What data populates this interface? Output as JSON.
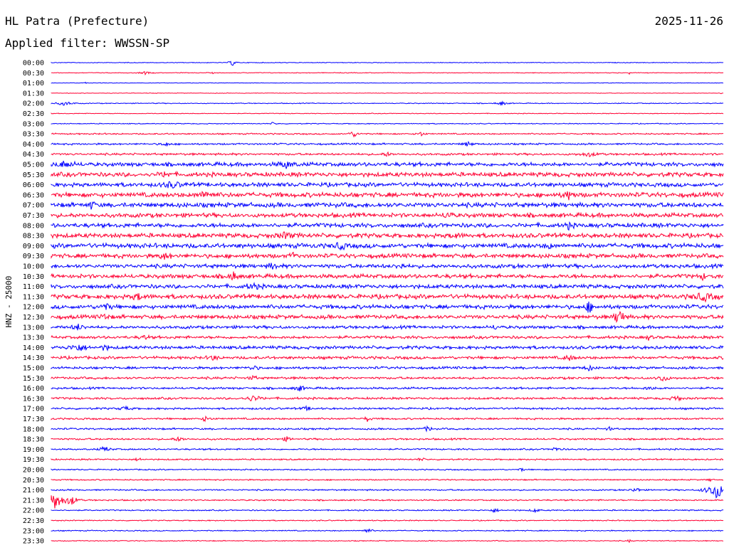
{
  "header": {
    "station": "HL Patra (Prefecture)",
    "date": "2025-11-26",
    "filter": "Applied filter: WWSSN-SP"
  },
  "colors": {
    "even": "#0000ff",
    "odd": "#ff0033"
  },
  "chart_data": {
    "type": "line",
    "title": "HL Patra (Prefecture)",
    "ylabel": "HNZ - 25000",
    "xlabel": "",
    "rows": [
      {
        "time": "00:00",
        "noise": 0.4,
        "events": [
          [
            0.27,
            5,
            3
          ]
        ]
      },
      {
        "time": "00:30",
        "noise": 0.4,
        "events": [
          [
            0.14,
            2,
            6
          ],
          [
            0.24,
            3,
            1
          ],
          [
            0.86,
            2,
            1
          ]
        ]
      },
      {
        "time": "01:00",
        "noise": 0.3,
        "events": [
          [
            0.05,
            2,
            1
          ]
        ]
      },
      {
        "time": "01:30",
        "noise": 0.3,
        "events": [
          [
            0.995,
            3,
            1
          ]
        ]
      },
      {
        "time": "02:00",
        "noise": 0.5,
        "events": [
          [
            0.02,
            3,
            8
          ],
          [
            0.67,
            3,
            5
          ]
        ]
      },
      {
        "time": "02:30",
        "noise": 0.4,
        "events": []
      },
      {
        "time": "03:00",
        "noise": 0.5,
        "events": [
          [
            0.33,
            2,
            3
          ]
        ]
      },
      {
        "time": "03:30",
        "noise": 0.8,
        "events": [
          [
            0.45,
            4,
            5
          ],
          [
            0.55,
            3,
            4
          ]
        ]
      },
      {
        "time": "04:00",
        "noise": 1.0,
        "events": [
          [
            0.17,
            3,
            4
          ],
          [
            0.62,
            3,
            5
          ]
        ]
      },
      {
        "time": "04:30",
        "noise": 1.2,
        "events": [
          [
            0.5,
            3,
            4
          ],
          [
            0.8,
            3,
            8
          ]
        ]
      },
      {
        "time": "05:00",
        "noise": 2.2,
        "events": [
          [
            0.02,
            4,
            10
          ],
          [
            0.35,
            4,
            8
          ]
        ]
      },
      {
        "time": "05:30",
        "noise": 2.4,
        "events": [
          [
            0.17,
            4,
            5
          ]
        ]
      },
      {
        "time": "06:00",
        "noise": 2.3,
        "events": [
          [
            0.18,
            4,
            8
          ]
        ]
      },
      {
        "time": "06:30",
        "noise": 2.6,
        "events": [
          [
            0.23,
            4,
            8
          ],
          [
            0.77,
            5,
            5
          ]
        ]
      },
      {
        "time": "07:00",
        "noise": 2.6,
        "events": [
          [
            0.06,
            5,
            3
          ]
        ]
      },
      {
        "time": "07:30",
        "noise": 2.4,
        "events": [
          [
            0.59,
            5,
            4
          ]
        ]
      },
      {
        "time": "08:00",
        "noise": 2.4,
        "events": [
          [
            0.77,
            4,
            4
          ]
        ]
      },
      {
        "time": "08:30",
        "noise": 2.5,
        "events": [
          [
            0.35,
            4,
            8
          ],
          [
            0.6,
            4,
            5
          ]
        ]
      },
      {
        "time": "09:00",
        "noise": 2.6,
        "events": [
          [
            0.43,
            5,
            5
          ],
          [
            0.74,
            4,
            3
          ]
        ]
      },
      {
        "time": "09:30",
        "noise": 2.4,
        "events": [
          [
            0.17,
            4,
            5
          ],
          [
            0.36,
            5,
            2
          ]
        ]
      },
      {
        "time": "10:00",
        "noise": 2.2,
        "events": [
          [
            0.33,
            5,
            4
          ],
          [
            0.52,
            4,
            4
          ]
        ]
      },
      {
        "time": "10:30",
        "noise": 2.3,
        "events": [
          [
            0.27,
            7,
            4
          ],
          [
            0.97,
            4,
            3
          ]
        ]
      },
      {
        "time": "11:00",
        "noise": 2.2,
        "events": [
          [
            0.3,
            4,
            6
          ]
        ]
      },
      {
        "time": "11:30",
        "noise": 2.5,
        "events": [
          [
            0.13,
            4,
            6
          ],
          [
            0.97,
            5,
            10
          ]
        ]
      },
      {
        "time": "12:00",
        "noise": 2.3,
        "events": [
          [
            0.8,
            8,
            4
          ],
          [
            0.08,
            4,
            6
          ]
        ]
      },
      {
        "time": "12:30",
        "noise": 2.2,
        "events": [
          [
            0.845,
            16,
            4
          ],
          [
            0.08,
            4,
            4
          ]
        ]
      },
      {
        "time": "13:00",
        "noise": 1.7,
        "events": [
          [
            0.04,
            4,
            6
          ],
          [
            0.66,
            3,
            3
          ]
        ]
      },
      {
        "time": "13:30",
        "noise": 1.6,
        "events": [
          [
            0.14,
            3,
            4
          ],
          [
            0.89,
            4,
            3
          ]
        ]
      },
      {
        "time": "14:00",
        "noise": 1.8,
        "events": [
          [
            0.04,
            5,
            8
          ],
          [
            0.08,
            4,
            4
          ]
        ]
      },
      {
        "time": "14:30",
        "noise": 1.6,
        "events": [
          [
            0.24,
            4,
            4
          ],
          [
            0.77,
            4,
            5
          ]
        ]
      },
      {
        "time": "15:00",
        "noise": 1.4,
        "events": [
          [
            0.3,
            4,
            4
          ],
          [
            0.8,
            4,
            4
          ]
        ]
      },
      {
        "time": "15:30",
        "noise": 1.3,
        "events": [
          [
            0.91,
            5,
            5
          ],
          [
            0.3,
            3,
            4
          ]
        ]
      },
      {
        "time": "16:00",
        "noise": 1.2,
        "events": [
          [
            0.37,
            4,
            5
          ],
          [
            0.89,
            3,
            4
          ]
        ]
      },
      {
        "time": "16:30",
        "noise": 1.2,
        "events": [
          [
            0.3,
            4,
            8
          ],
          [
            0.93,
            5,
            4
          ]
        ]
      },
      {
        "time": "17:00",
        "noise": 1.1,
        "events": [
          [
            0.11,
            3,
            5
          ],
          [
            0.38,
            3,
            4
          ]
        ]
      },
      {
        "time": "17:30",
        "noise": 1.0,
        "events": [
          [
            0.23,
            4,
            4
          ],
          [
            0.47,
            4,
            3
          ]
        ]
      },
      {
        "time": "18:00",
        "noise": 1.0,
        "events": [
          [
            0.56,
            4,
            4
          ],
          [
            0.83,
            3,
            3
          ]
        ]
      },
      {
        "time": "18:30",
        "noise": 1.0,
        "events": [
          [
            0.19,
            3,
            5
          ],
          [
            0.35,
            3,
            4
          ]
        ]
      },
      {
        "time": "19:00",
        "noise": 0.9,
        "events": [
          [
            0.08,
            4,
            5
          ],
          [
            0.75,
            3,
            4
          ]
        ]
      },
      {
        "time": "19:30",
        "noise": 0.8,
        "events": [
          [
            0.13,
            3,
            3
          ],
          [
            0.55,
            3,
            3
          ]
        ]
      },
      {
        "time": "20:00",
        "noise": 0.7,
        "events": [
          [
            0.7,
            3,
            2
          ]
        ]
      },
      {
        "time": "20:30",
        "noise": 0.7,
        "events": [
          [
            0.98,
            3,
            2
          ]
        ]
      },
      {
        "time": "21:00",
        "noise": 0.8,
        "events": [
          [
            0.87,
            4,
            4
          ],
          [
            0.99,
            12,
            10
          ]
        ]
      },
      {
        "time": "21:30",
        "noise": 0.8,
        "events": [
          [
            0.005,
            14,
            8
          ],
          [
            0.03,
            7,
            6
          ]
        ]
      },
      {
        "time": "22:00",
        "noise": 0.7,
        "events": [
          [
            0.66,
            3,
            4
          ],
          [
            0.72,
            3,
            4
          ]
        ]
      },
      {
        "time": "22:30",
        "noise": 0.6,
        "events": []
      },
      {
        "time": "23:00",
        "noise": 0.6,
        "events": [
          [
            0.47,
            3,
            5
          ]
        ]
      },
      {
        "time": "23:30",
        "noise": 0.5,
        "events": [
          [
            0.86,
            2,
            2
          ]
        ]
      }
    ]
  }
}
